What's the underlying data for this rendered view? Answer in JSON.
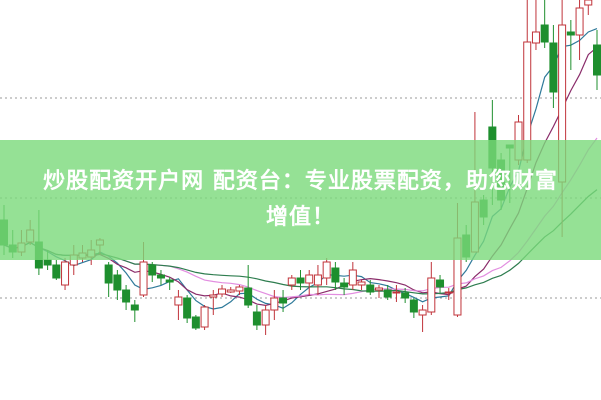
{
  "banner": {
    "line1": "炒股配资开户网 配资台：专业股票配资，助您财富",
    "line2": "增值！",
    "color": "#7ada7a"
  },
  "chart_data": {
    "type": "candlestick",
    "title": "",
    "xlabel": "",
    "ylabel": "",
    "ylim": [
      0,
      400
    ],
    "grid": "dotted horizontal",
    "gridlines": [
      102,
      202,
      302
    ],
    "up_color": "#c0333a",
    "down_color": "#1e8f2e",
    "candles_ohlc": [
      [
        180,
        195,
        145,
        155
      ],
      [
        155,
        170,
        142,
        148
      ],
      [
        148,
        170,
        144,
        157
      ],
      [
        158,
        180,
        155,
        170
      ],
      [
        158,
        190,
        125,
        132
      ],
      [
        140,
        150,
        130,
        135
      ],
      [
        135,
        140,
        120,
        122
      ],
      [
        115,
        142,
        110,
        138
      ],
      [
        135,
        155,
        125,
        145
      ],
      [
        142,
        155,
        138,
        147
      ],
      [
        143,
        160,
        135,
        150
      ],
      [
        155,
        162,
        145,
        160
      ],
      [
        135,
        138,
        103,
        117
      ],
      [
        125,
        130,
        100,
        110
      ],
      [
        110,
        115,
        90,
        98
      ],
      [
        95,
        100,
        78,
        90
      ],
      [
        105,
        158,
        103,
        138
      ],
      [
        135,
        138,
        118,
        125
      ],
      [
        125,
        130,
        115,
        122
      ],
      [
        120,
        123,
        110,
        118
      ],
      [
        95,
        110,
        80,
        103
      ],
      [
        102,
        105,
        77,
        82
      ],
      [
        83,
        85,
        70,
        72
      ],
      [
        73,
        95,
        70,
        93
      ],
      [
        103,
        110,
        85,
        105
      ],
      [
        106,
        115,
        103,
        111
      ],
      [
        108,
        113,
        107,
        110
      ],
      [
        109,
        115,
        105,
        113
      ],
      [
        112,
        135,
        92,
        95
      ],
      [
        88,
        95,
        70,
        75
      ],
      [
        75,
        95,
        65,
        90
      ],
      [
        90,
        110,
        80,
        102
      ],
      [
        102,
        110,
        88,
        97
      ],
      [
        115,
        125,
        110,
        122
      ],
      [
        122,
        130,
        110,
        117
      ],
      [
        117,
        130,
        105,
        125
      ],
      [
        115,
        135,
        105,
        125
      ],
      [
        122,
        142,
        115,
        138
      ],
      [
        132,
        138,
        110,
        118
      ],
      [
        117,
        122,
        105,
        113
      ],
      [
        115,
        138,
        110,
        130
      ],
      [
        115,
        120,
        110,
        118
      ],
      [
        115,
        120,
        105,
        108
      ],
      [
        110,
        115,
        102,
        112
      ],
      [
        110,
        115,
        100,
        103
      ],
      [
        107,
        115,
        98,
        108
      ],
      [
        107,
        112,
        97,
        102
      ],
      [
        100,
        102,
        82,
        88
      ],
      [
        85,
        95,
        68,
        90
      ],
      [
        88,
        138,
        85,
        122
      ],
      [
        120,
        125,
        107,
        113
      ],
      [
        108,
        112,
        100,
        108
      ],
      [
        85,
        197,
        83,
        162
      ],
      [
        165,
        175,
        138,
        143
      ],
      [
        148,
        288,
        148,
        198
      ],
      [
        200,
        205,
        175,
        183
      ],
      [
        273,
        300,
        195,
        232
      ],
      [
        240,
        247,
        190,
        200
      ],
      [
        255,
        255,
        197,
        252
      ],
      [
        240,
        285,
        235,
        278
      ],
      [
        240,
        400,
        237,
        358
      ],
      [
        357,
        400,
        350,
        368
      ],
      [
        375,
        400,
        352,
        358
      ],
      [
        357,
        375,
        292,
        308
      ],
      [
        218,
        400,
        163,
        375
      ],
      [
        368,
        380,
        330,
        365
      ],
      [
        365,
        400,
        340,
        392
      ],
      [
        395,
        400,
        385,
        400
      ],
      [
        355,
        370,
        310,
        325
      ]
    ],
    "moving_averages": [
      {
        "period": 5,
        "color": "#2f7a9a"
      },
      {
        "period": 10,
        "color": "#8a2c6a"
      },
      {
        "period": 20,
        "color": "#e28ee0"
      },
      {
        "period": 30,
        "color": "#2e7d4f"
      }
    ]
  }
}
